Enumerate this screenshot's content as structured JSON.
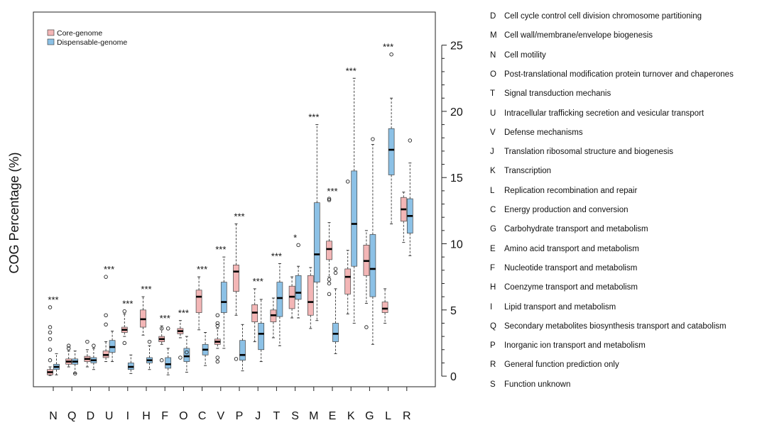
{
  "chart_data": {
    "type": "boxplot",
    "ylabel": "COG Percentage (%)",
    "xlabel": "",
    "ylim": [
      -0.8,
      27.5
    ],
    "yticks": [
      0,
      5,
      10,
      15,
      20,
      25
    ],
    "ytick_labels": [
      "0",
      "5",
      "10",
      "15",
      "20",
      "25"
    ],
    "grid": false,
    "yaxis_side": "right",
    "legend_position": "top-left",
    "categories": [
      "N",
      "Q",
      "D",
      "U",
      "I",
      "H",
      "F",
      "O",
      "C",
      "V",
      "P",
      "J",
      "T",
      "S",
      "M",
      "E",
      "K",
      "G",
      "L",
      "R"
    ],
    "significance": [
      "***",
      "",
      "",
      "***",
      "***",
      "***",
      "***",
      "***",
      "***",
      "***",
      "***",
      "***",
      "***",
      "*",
      "***",
      "***",
      "***",
      "",
      "***",
      ""
    ],
    "series": [
      {
        "name": "Core-genome",
        "color": "#f3b6b6",
        "boxes": [
          {
            "q1": 0.1,
            "median": 0.3,
            "q3": 0.5,
            "whisker_low": 0.05,
            "whisker_high": 0.7,
            "outliers": [
              1.2,
              2.0,
              2.8,
              3.3,
              3.7,
              5.2
            ]
          },
          {
            "q1": 0.9,
            "median": 1.1,
            "q3": 1.3,
            "whisker_low": 0.7,
            "whisker_high": 1.9,
            "outliers": [
              2.1,
              2.3
            ]
          },
          {
            "q1": 1.1,
            "median": 1.3,
            "q3": 1.5,
            "whisker_low": 0.7,
            "whisker_high": 2.0,
            "outliers": [
              2.6
            ]
          },
          {
            "q1": 1.4,
            "median": 1.6,
            "q3": 1.9,
            "whisker_low": 1.1,
            "whisker_high": 2.6,
            "outliers": [
              3.9,
              4.6,
              7.5
            ]
          },
          {
            "q1": 3.3,
            "median": 3.5,
            "q3": 3.7,
            "whisker_low": 3.0,
            "whisker_high": 4.7,
            "outliers": [
              2.5,
              4.9
            ]
          },
          {
            "q1": 3.7,
            "median": 4.3,
            "q3": 5.0,
            "whisker_low": 3.1,
            "whisker_high": 6.0,
            "outliers": []
          },
          {
            "q1": 2.6,
            "median": 2.8,
            "q3": 3.0,
            "whisker_low": 2.4,
            "whisker_high": 3.8,
            "outliers": [
              1.2,
              3.6
            ]
          },
          {
            "q1": 3.2,
            "median": 3.4,
            "q3": 3.6,
            "whisker_low": 2.9,
            "whisker_high": 4.2,
            "outliers": [
              1.4
            ]
          },
          {
            "q1": 4.8,
            "median": 6.0,
            "q3": 6.5,
            "whisker_low": 3.5,
            "whisker_high": 7.5,
            "outliers": []
          },
          {
            "q1": 2.4,
            "median": 2.6,
            "q3": 2.8,
            "whisker_low": 2.1,
            "whisker_high": 3.6,
            "outliers": [
              1.1,
              1.4,
              3.8,
              4.0,
              4.6
            ]
          },
          {
            "q1": 6.4,
            "median": 7.9,
            "q3": 8.4,
            "whisker_low": 4.6,
            "whisker_high": 11.5,
            "outliers": [
              1.3
            ]
          },
          {
            "q1": 4.1,
            "median": 4.8,
            "q3": 5.4,
            "whisker_low": 2.6,
            "whisker_high": 6.6,
            "outliers": []
          },
          {
            "q1": 4.1,
            "median": 4.6,
            "q3": 5.0,
            "whisker_low": 2.9,
            "whisker_high": 5.9,
            "outliers": []
          },
          {
            "q1": 5.1,
            "median": 6.0,
            "q3": 6.8,
            "whisker_low": 4.4,
            "whisker_high": 7.5,
            "outliers": []
          },
          {
            "q1": 4.6,
            "median": 5.6,
            "q3": 7.6,
            "whisker_low": 3.6,
            "whisker_high": 8.2,
            "outliers": []
          },
          {
            "q1": 8.8,
            "median": 9.6,
            "q3": 10.2,
            "whisker_low": 7.5,
            "whisker_high": 11.6,
            "outliers": [
              6.2,
              7.0,
              7.3,
              13.3,
              13.4
            ]
          },
          {
            "q1": 6.2,
            "median": 7.5,
            "q3": 8.1,
            "whisker_low": 4.7,
            "whisker_high": 9.5,
            "outliers": [
              14.7
            ]
          },
          {
            "q1": 7.6,
            "median": 8.7,
            "q3": 9.9,
            "whisker_low": 5.5,
            "whisker_high": 11.0,
            "outliers": [
              3.7
            ]
          },
          {
            "q1": 4.8,
            "median": 5.1,
            "q3": 5.6,
            "whisker_low": 4.0,
            "whisker_high": 6.6,
            "outliers": []
          },
          {
            "q1": 11.7,
            "median": 12.6,
            "q3": 13.5,
            "whisker_low": 10.1,
            "whisker_high": 13.9,
            "outliers": []
          }
        ]
      },
      {
        "name": "Dispensable-genome",
        "color": "#8cc1e6",
        "boxes": [
          {
            "q1": 0.5,
            "median": 0.7,
            "q3": 0.9,
            "whisker_low": 0.1,
            "whisker_high": 1.7,
            "outliers": []
          },
          {
            "q1": 0.9,
            "median": 1.1,
            "q3": 1.3,
            "whisker_low": 0.2,
            "whisker_high": 1.9,
            "outliers": [
              0.2
            ]
          },
          {
            "q1": 1.0,
            "median": 1.2,
            "q3": 1.4,
            "whisker_low": 0.5,
            "whisker_high": 2.1,
            "outliers": [
              2.3
            ]
          },
          {
            "q1": 1.8,
            "median": 2.2,
            "q3": 2.7,
            "whisker_low": 1.1,
            "whisker_high": 3.4,
            "outliers": []
          },
          {
            "q1": 0.5,
            "median": 0.7,
            "q3": 1.0,
            "whisker_low": 0.2,
            "whisker_high": 1.6,
            "outliers": []
          },
          {
            "q1": 1.0,
            "median": 1.2,
            "q3": 1.4,
            "whisker_low": 0.5,
            "whisker_high": 2.3,
            "outliers": [
              2.6
            ]
          },
          {
            "q1": 0.6,
            "median": 0.9,
            "q3": 1.4,
            "whisker_low": 0.1,
            "whisker_high": 2.1,
            "outliers": [
              3.6
            ]
          },
          {
            "q1": 1.1,
            "median": 1.5,
            "q3": 2.1,
            "whisker_low": 0.3,
            "whisker_high": 3.0,
            "outliers": [
              1.8
            ]
          },
          {
            "q1": 1.6,
            "median": 2.0,
            "q3": 2.4,
            "whisker_low": 0.8,
            "whisker_high": 3.3,
            "outliers": []
          },
          {
            "q1": 4.8,
            "median": 5.6,
            "q3": 7.1,
            "whisker_low": 2.1,
            "whisker_high": 9.0,
            "outliers": []
          },
          {
            "q1": 1.2,
            "median": 1.6,
            "q3": 2.7,
            "whisker_low": 0.4,
            "whisker_high": 3.9,
            "outliers": []
          },
          {
            "q1": 2.0,
            "median": 3.2,
            "q3": 4.0,
            "whisker_low": 1.1,
            "whisker_high": 5.8,
            "outliers": []
          },
          {
            "q1": 4.5,
            "median": 5.9,
            "q3": 7.1,
            "whisker_low": 2.3,
            "whisker_high": 8.5,
            "outliers": []
          },
          {
            "q1": 5.8,
            "median": 6.3,
            "q3": 7.6,
            "whisker_low": 4.4,
            "whisker_high": 8.3,
            "outliers": [
              9.9
            ]
          },
          {
            "q1": 7.1,
            "median": 9.2,
            "q3": 13.1,
            "whisker_low": 4.2,
            "whisker_high": 19.0,
            "outliers": []
          },
          {
            "q1": 2.6,
            "median": 3.2,
            "q3": 4.0,
            "whisker_low": 1.7,
            "whisker_high": 6.6,
            "outliers": [
              7.8,
              8.1
            ]
          },
          {
            "q1": 8.3,
            "median": 11.5,
            "q3": 15.5,
            "whisker_low": 4.0,
            "whisker_high": 22.5,
            "outliers": []
          },
          {
            "q1": 6.0,
            "median": 8.1,
            "q3": 10.7,
            "whisker_low": 2.4,
            "whisker_high": 17.5,
            "outliers": [
              17.9
            ]
          },
          {
            "q1": 15.2,
            "median": 17.1,
            "q3": 18.7,
            "whisker_low": 11.5,
            "whisker_high": 21.0,
            "outliers": [
              24.3
            ]
          },
          {
            "q1": 10.8,
            "median": 12.1,
            "q3": 13.4,
            "whisker_low": 9.1,
            "whisker_high": 16.1,
            "outliers": [
              17.8
            ]
          }
        ]
      }
    ]
  },
  "legend": {
    "items": [
      {
        "code": "D",
        "label": "Cell cycle control cell division chromosome partitioning"
      },
      {
        "code": "M",
        "label": "Cell wall/membrane/envelope biogenesis"
      },
      {
        "code": "N",
        "label": "Cell motility"
      },
      {
        "code": "O",
        "label": "Post-translational modification protein turnover and chaperones"
      },
      {
        "code": "T",
        "label": "Signal transduction mechanis"
      },
      {
        "code": "U",
        "label": "Intracellular trafficking secretion and vesicular transport"
      },
      {
        "code": "V",
        "label": "Defense mechanisms"
      },
      {
        "code": "J",
        "label": "Translation ribosomal structure and biogenesis"
      },
      {
        "code": "K",
        "label": "Transcription"
      },
      {
        "code": "L",
        "label": "Replication recombination and repair"
      },
      {
        "code": "C",
        "label": "Energy production and conversion"
      },
      {
        "code": "G",
        "label": "Carbohydrate transport and metabolism"
      },
      {
        "code": "E",
        "label": "Amino acid transport and metabolism"
      },
      {
        "code": "F",
        "label": "Nucleotide transport and metabolism"
      },
      {
        "code": "H",
        "label": "Coenzyme transport and metabolism"
      },
      {
        "code": "I",
        "label": "Lipid transport and metabolism"
      },
      {
        "code": "Q",
        "label": "Secondary metabolites biosynthesis transport and catabolism"
      },
      {
        "code": "P",
        "label": "Inorganic ion transport and metabolism"
      },
      {
        "code": "R",
        "label": "General function prediction only"
      },
      {
        "code": "S",
        "label": "Function unknown"
      }
    ]
  }
}
